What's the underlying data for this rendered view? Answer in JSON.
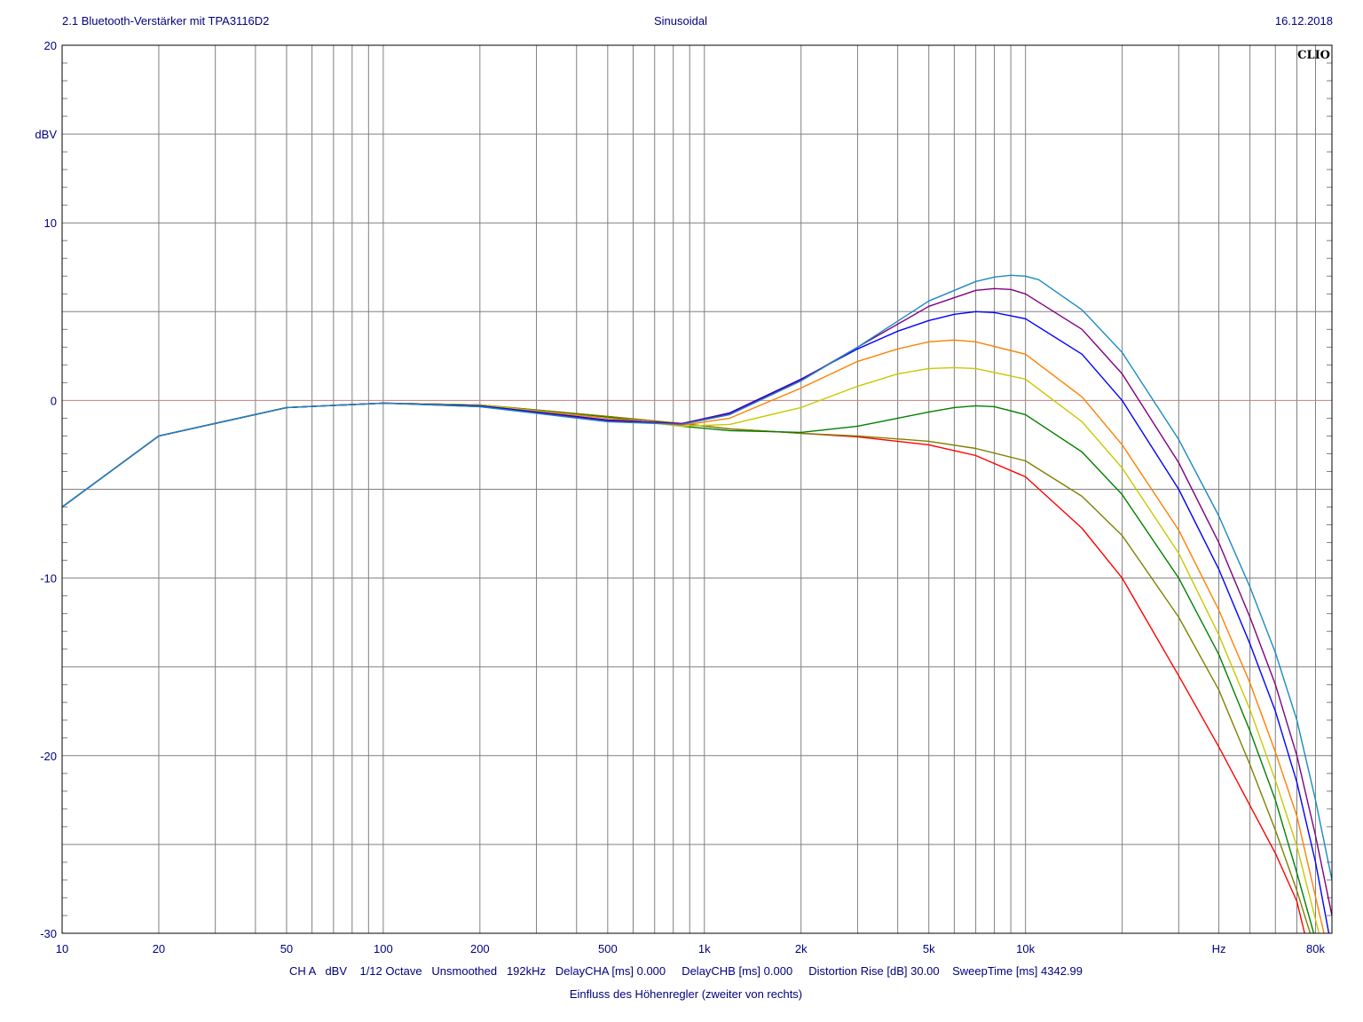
{
  "header": {
    "title_left": "2.1 Bluetooth-Verstärker mit TPA3116D2",
    "title_center": "Sinusoidal",
    "date": "16.12.2018"
  },
  "footer": {
    "settings": "CH A   dBV    1/12 Octave   Unsmoothed   192kHz   DelayCHA [ms] 0.000     DelayCHB [ms] 0.000     Distortion Rise [dB] 30.00    SweepTime [ms] 4342.99",
    "title": "Einfluss des Höhenregler (zweiter von rechts)"
  },
  "logo": "CLIO",
  "colors": {
    "grid": "#808080",
    "zero_line": "#c08080",
    "text": "#000080"
  },
  "chart_data": {
    "type": "line",
    "x_scale": "log",
    "xlim": [
      10,
      90000
    ],
    "ylim": [
      -30,
      20
    ],
    "ylabel": "dBV",
    "xlabel": "Hz",
    "grid": true,
    "y_ticks": [
      {
        "value": 20,
        "label": "20"
      },
      {
        "value": 10,
        "label": "10"
      },
      {
        "value": 0,
        "label": "0"
      },
      {
        "value": -10,
        "label": "-10"
      },
      {
        "value": -20,
        "label": "-20"
      },
      {
        "value": -30,
        "label": "-30"
      }
    ],
    "x_ticks": [
      {
        "value": 10,
        "label": "10"
      },
      {
        "value": 20,
        "label": "20"
      },
      {
        "value": 50,
        "label": "50"
      },
      {
        "value": 100,
        "label": "100"
      },
      {
        "value": 200,
        "label": "200"
      },
      {
        "value": 500,
        "label": "500"
      },
      {
        "value": 1000,
        "label": "1k"
      },
      {
        "value": 2000,
        "label": "2k"
      },
      {
        "value": 5000,
        "label": "5k"
      },
      {
        "value": 10000,
        "label": "10k"
      },
      {
        "value": 80000,
        "label": "80k"
      }
    ],
    "series": [
      {
        "color": "#ff0000",
        "x": [
          10,
          20,
          50,
          100,
          200,
          500,
          850,
          1200,
          2000,
          3000,
          5000,
          7000,
          10000,
          15000,
          20000,
          30000,
          40000,
          50000,
          60000,
          70000,
          74000
        ],
        "y": [
          -6.0,
          -2.0,
          -0.4,
          -0.15,
          -0.25,
          -0.9,
          -1.3,
          -1.6,
          -1.85,
          -2.05,
          -2.5,
          -3.1,
          -4.3,
          -7.2,
          -10.0,
          -15.5,
          -19.5,
          -22.8,
          -25.5,
          -28.2,
          -30.0
        ]
      },
      {
        "color": "#808000",
        "x": [
          10,
          20,
          50,
          100,
          200,
          500,
          850,
          1200,
          2000,
          3000,
          5000,
          7000,
          10000,
          15000,
          20000,
          30000,
          40000,
          50000,
          60000,
          70000,
          77000
        ],
        "y": [
          -6.0,
          -2.0,
          -0.4,
          -0.15,
          -0.25,
          -0.9,
          -1.3,
          -1.6,
          -1.85,
          -2.0,
          -2.3,
          -2.7,
          -3.4,
          -5.4,
          -7.6,
          -12.2,
          -16.3,
          -20.5,
          -24.2,
          -27.6,
          -30.0
        ]
      },
      {
        "color": "#008000",
        "x": [
          10,
          20,
          50,
          100,
          200,
          500,
          850,
          1200,
          2000,
          3000,
          4000,
          5000,
          6000,
          7000,
          8000,
          10000,
          15000,
          20000,
          30000,
          40000,
          50000,
          60000,
          70000,
          79000
        ],
        "y": [
          -6.0,
          -2.0,
          -0.4,
          -0.15,
          -0.25,
          -0.95,
          -1.45,
          -1.7,
          -1.8,
          -1.45,
          -1.0,
          -0.65,
          -0.4,
          -0.3,
          -0.35,
          -0.8,
          -2.9,
          -5.3,
          -10.0,
          -14.3,
          -18.6,
          -22.5,
          -26.6,
          -30.0
        ]
      },
      {
        "color": "#c8c800",
        "x": [
          10,
          20,
          50,
          100,
          200,
          500,
          850,
          1200,
          2000,
          3000,
          4000,
          5000,
          6000,
          7000,
          10000,
          15000,
          20000,
          30000,
          40000,
          50000,
          60000,
          70000,
          82000
        ],
        "y": [
          -6.0,
          -2.0,
          -0.4,
          -0.15,
          -0.25,
          -1.0,
          -1.45,
          -1.35,
          -0.4,
          0.8,
          1.5,
          1.8,
          1.85,
          1.8,
          1.2,
          -1.2,
          -3.8,
          -8.6,
          -13.2,
          -17.4,
          -21.4,
          -25.1,
          -30.0
        ]
      },
      {
        "color": "#ff8000",
        "x": [
          10,
          20,
          50,
          100,
          200,
          500,
          850,
          1200,
          2000,
          3000,
          4000,
          5000,
          6000,
          7000,
          10000,
          15000,
          20000,
          30000,
          40000,
          50000,
          60000,
          70000,
          85000
        ],
        "y": [
          -6.0,
          -2.0,
          -0.4,
          -0.15,
          -0.3,
          -1.0,
          -1.4,
          -1.0,
          0.7,
          2.2,
          2.9,
          3.3,
          3.4,
          3.3,
          2.6,
          0.2,
          -2.5,
          -7.3,
          -11.8,
          -15.9,
          -19.8,
          -23.4,
          -30.0
        ]
      },
      {
        "color": "#0000ff",
        "x": [
          10,
          20,
          50,
          100,
          200,
          500,
          850,
          1200,
          2000,
          3000,
          4000,
          5000,
          6000,
          7000,
          8000,
          10000,
          15000,
          20000,
          30000,
          40000,
          50000,
          60000,
          70000,
          80000,
          88000
        ],
        "y": [
          -6.0,
          -2.0,
          -0.4,
          -0.15,
          -0.3,
          -1.1,
          -1.3,
          -0.7,
          1.2,
          2.9,
          3.9,
          4.5,
          4.85,
          5.0,
          4.95,
          4.6,
          2.6,
          0.0,
          -5.0,
          -9.5,
          -13.7,
          -17.5,
          -21.5,
          -26.0,
          -30.0
        ]
      },
      {
        "color": "#800080",
        "x": [
          10,
          20,
          50,
          100,
          200,
          500,
          850,
          1200,
          2000,
          3000,
          5000,
          7000,
          8000,
          9000,
          10000,
          15000,
          20000,
          30000,
          40000,
          50000,
          60000,
          70000,
          80000,
          90000
        ],
        "y": [
          -6.0,
          -2.0,
          -0.4,
          -0.15,
          -0.35,
          -1.15,
          -1.3,
          -0.75,
          1.15,
          3.0,
          5.3,
          6.2,
          6.3,
          6.25,
          6.0,
          4.0,
          1.5,
          -3.5,
          -8.0,
          -12.2,
          -16.0,
          -20.0,
          -24.5,
          -29.0
        ]
      },
      {
        "color": "#1a8ac0",
        "x": [
          10,
          20,
          50,
          100,
          200,
          500,
          850,
          1200,
          2000,
          3000,
          5000,
          7000,
          8000,
          9000,
          10000,
          11000,
          15000,
          20000,
          30000,
          40000,
          50000,
          60000,
          70000,
          80000,
          90000
        ],
        "y": [
          -6.0,
          -2.0,
          -0.4,
          -0.15,
          -0.35,
          -1.2,
          -1.35,
          -0.8,
          1.1,
          3.0,
          5.6,
          6.7,
          6.95,
          7.05,
          7.0,
          6.8,
          5.1,
          2.7,
          -2.2,
          -6.5,
          -10.5,
          -14.2,
          -18.0,
          -22.5,
          -27.0
        ]
      }
    ]
  }
}
